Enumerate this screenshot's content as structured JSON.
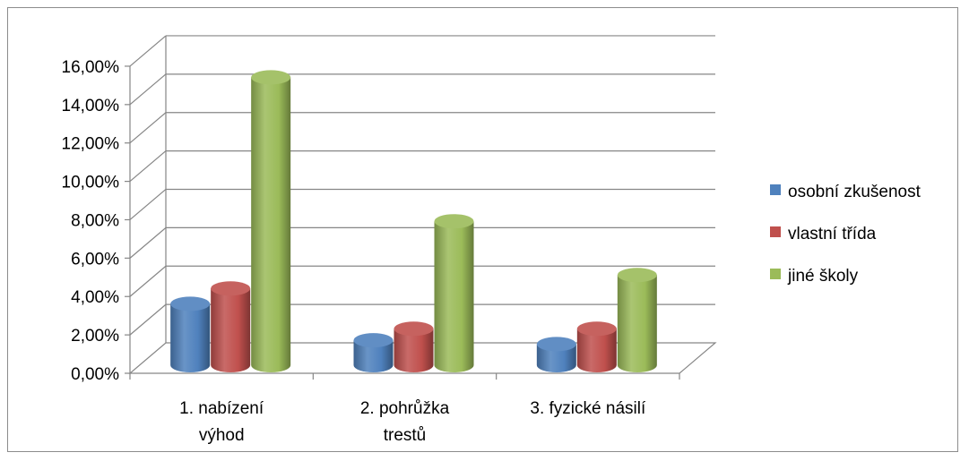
{
  "chart_data": {
    "type": "bar",
    "title": "",
    "xlabel": "",
    "ylabel": "",
    "categories": [
      [
        "1. nabízení",
        "výhod"
      ],
      [
        "2. pohrůžka",
        "trestů"
      ],
      [
        "3. fyzické násilí"
      ]
    ],
    "series": [
      {
        "name": "osobní zkušenost",
        "color": "#4f81bd",
        "values": [
          3.2,
          1.3,
          1.1
        ]
      },
      {
        "name": "vlastní třída",
        "color": "#c0504d",
        "values": [
          4.0,
          1.9,
          1.9
        ]
      },
      {
        "name": "jiné školy",
        "color": "#9bbb59",
        "values": [
          15.0,
          7.5,
          4.7
        ]
      }
    ],
    "ylim": [
      0,
      16
    ],
    "yticks": [
      "0,00%",
      "2,00%",
      "4,00%",
      "6,00%",
      "8,00%",
      "10,00%",
      "12,00%",
      "14,00%",
      "16,00%"
    ],
    "grid": true,
    "legend_position": "right",
    "style": "3d-cylinder"
  }
}
